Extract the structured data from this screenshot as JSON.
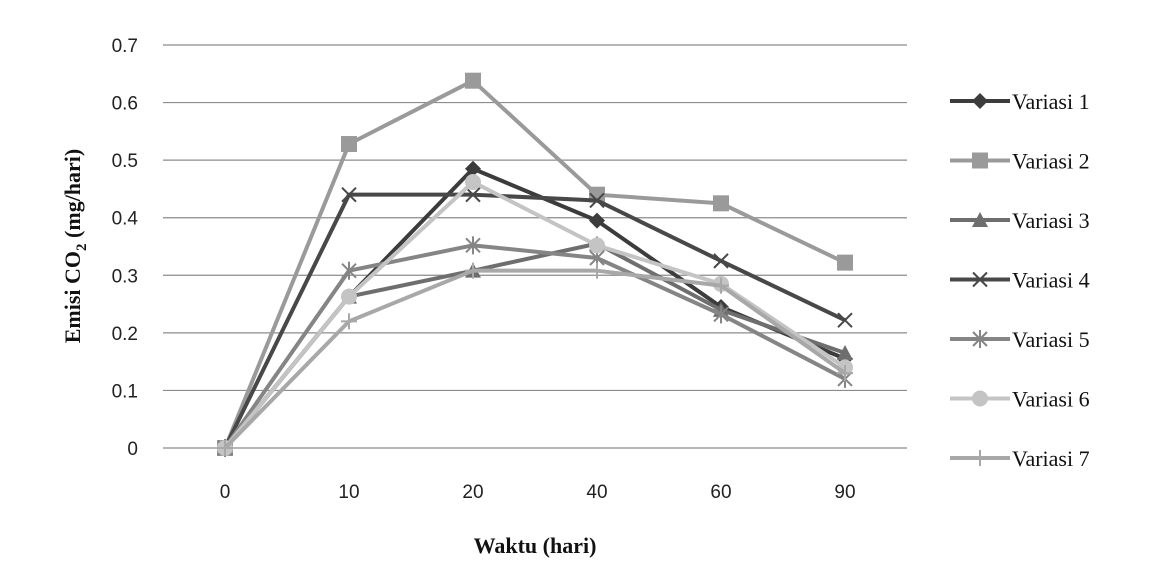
{
  "chart_data": {
    "type": "line",
    "title": "",
    "xlabel": "Waktu (hari)",
    "ylabel_prefix": "Emisi  CO",
    "ylabel_subscript": "2",
    "ylabel_suffix": " (mg/hari)",
    "categories": [
      "0",
      "10",
      "20",
      "40",
      "60",
      "90"
    ],
    "ylim": [
      0,
      0.7
    ],
    "yticks": [
      "0",
      "0.1",
      "0.2",
      "0.3",
      "0.4",
      "0.5",
      "0.6",
      "0.7"
    ],
    "grid": true,
    "legend_position": "right",
    "series": [
      {
        "name": "Variasi 1",
        "marker": "diamond",
        "color": "#3c3c3c",
        "values": [
          0,
          0.263,
          0.485,
          0.395,
          0.245,
          0.155
        ]
      },
      {
        "name": "Variasi 2",
        "marker": "square",
        "color": "#9a9a9a",
        "values": [
          0,
          0.528,
          0.638,
          0.44,
          0.425,
          0.322
        ]
      },
      {
        "name": "Variasi 3",
        "marker": "triangle",
        "color": "#6e6e6e",
        "values": [
          0,
          0.263,
          0.308,
          0.355,
          0.24,
          0.165
        ]
      },
      {
        "name": "Variasi 4",
        "marker": "x",
        "color": "#484848",
        "values": [
          0,
          0.44,
          0.44,
          0.43,
          0.325,
          0.222
        ]
      },
      {
        "name": "Variasi 5",
        "marker": "star",
        "color": "#858585",
        "values": [
          0,
          0.308,
          0.352,
          0.33,
          0.232,
          0.12
        ]
      },
      {
        "name": "Variasi 6",
        "marker": "circle",
        "color": "#c4c4c4",
        "values": [
          0,
          0.263,
          0.462,
          0.352,
          0.285,
          0.14
        ]
      },
      {
        "name": "Variasi 7",
        "marker": "plus",
        "color": "#a8a8a8",
        "values": [
          0,
          0.22,
          0.308,
          0.308,
          0.282,
          0.13
        ]
      }
    ]
  }
}
